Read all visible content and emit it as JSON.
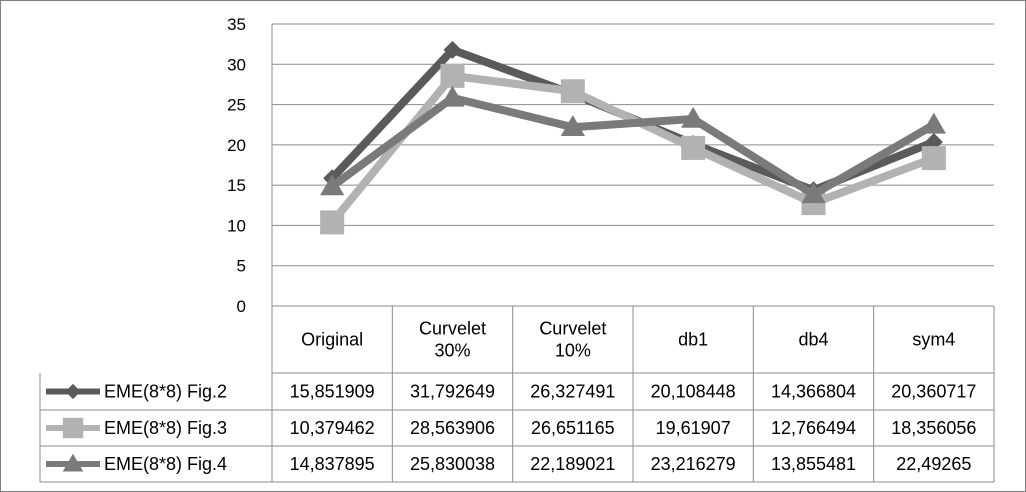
{
  "chart_data": {
    "type": "line",
    "title": "",
    "xlabel": "",
    "ylabel": "",
    "ylim": [
      0,
      35
    ],
    "yticks": [
      "0",
      "5",
      "10",
      "15",
      "20",
      "25",
      "30",
      "35"
    ],
    "grid": true,
    "legend": "data-table",
    "categories": [
      [
        "Original"
      ],
      [
        "Curvelet",
        "30%"
      ],
      [
        "Curvelet",
        "10%"
      ],
      [
        "db1"
      ],
      [
        "db4"
      ],
      [
        "sym4"
      ]
    ],
    "series": [
      {
        "name": "EME(8*8) Fig.2",
        "marker": "diamond",
        "color": "#5a5a5a",
        "values": [
          15.851909,
          31.792649,
          26.327491,
          20.108448,
          14.366804,
          20.360717
        ],
        "labels": [
          "15,851909",
          "31,792649",
          "26,327491",
          "20,108448",
          "14,366804",
          "20,360717"
        ]
      },
      {
        "name": "EME(8*8) Fig.3",
        "marker": "square",
        "color": "#b2b2b2",
        "values": [
          10.379462,
          28.563906,
          26.651165,
          19.61907,
          12.766494,
          18.356056
        ],
        "labels": [
          "10,379462",
          "28,563906",
          "26,651165",
          "19,61907",
          "12,766494",
          "18,356056"
        ]
      },
      {
        "name": "EME(8*8) Fig.4",
        "marker": "triangle",
        "color": "#7a7a7a",
        "values": [
          14.837895,
          25.830038,
          22.189021,
          23.216279,
          13.855481,
          22.49265
        ],
        "labels": [
          "14,837895",
          "25,830038",
          "22,189021",
          "23,216279",
          "13,855481",
          "22,49265"
        ]
      }
    ]
  }
}
